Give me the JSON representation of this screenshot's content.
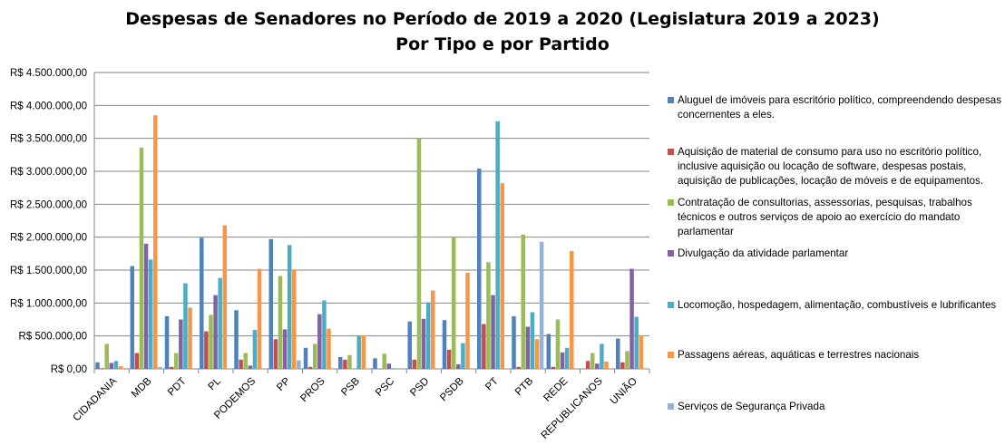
{
  "chart_data": {
    "type": "bar",
    "title": "Despesas de Senadores no Período de 2019 a 2020 (Legislatura 2019 a 2023)",
    "subtitle": "Por Tipo e por Partido",
    "ylim": [
      0,
      4500000
    ],
    "yticks": [
      0,
      500000,
      1000000,
      1500000,
      2000000,
      2500000,
      3000000,
      3500000,
      4000000,
      4500000
    ],
    "ytick_labels": [
      "R$ 0,00",
      "R$ 500.000,00",
      "R$ 1.000.000,00",
      "R$ 1.500.000,00",
      "R$ 2.000.000,00",
      "R$ 2.500.000,00",
      "R$ 3.000.000,00",
      "R$ 3.500.000,00",
      "R$ 4.000.000,00",
      "R$ 4.500.000,00"
    ],
    "grid": true,
    "legend_position": "right",
    "categories": [
      "CIDADANIA",
      "MDB",
      "PDT",
      "PL",
      "PODEMOS",
      "PP",
      "PROS",
      "PSB",
      "PSC",
      "PSD",
      "PSDB",
      "PT",
      "PTB",
      "REDE",
      "REPUBLICANOS",
      "UNIÃO"
    ],
    "series": [
      {
        "name": "Aluguel de imóveis para escritório político, compreendendo despesas concernentes a eles.",
        "color": "#4F81BD",
        "values": [
          100000,
          1560000,
          800000,
          1990000,
          890000,
          1970000,
          320000,
          180000,
          160000,
          720000,
          740000,
          3040000,
          800000,
          530000,
          0,
          460000
        ]
      },
      {
        "name": "Aquisição de material de consumo para uso no escritório político, inclusive aquisição ou locação de software, despesas postais, aquisição de publicações, locação de móveis e de equipamentos.",
        "color": "#C0504D",
        "values": [
          10000,
          240000,
          30000,
          570000,
          140000,
          450000,
          30000,
          140000,
          0,
          140000,
          290000,
          680000,
          30000,
          30000,
          120000,
          100000
        ]
      },
      {
        "name": "Contratação de consultorias, assessorias, pesquisas, trabalhos técnicos e outros serviços de apoio ao exercício do mandato parlamentar",
        "color": "#9BBB59",
        "values": [
          380000,
          3360000,
          240000,
          820000,
          240000,
          1410000,
          380000,
          210000,
          230000,
          3500000,
          2000000,
          1620000,
          2040000,
          750000,
          240000,
          270000
        ]
      },
      {
        "name": "Divulgação da atividade parlamentar",
        "color": "#8064A2",
        "values": [
          90000,
          1900000,
          750000,
          1120000,
          50000,
          600000,
          830000,
          0,
          80000,
          760000,
          70000,
          1120000,
          640000,
          250000,
          80000,
          1520000
        ]
      },
      {
        "name": "Locomoção, hospedagem, alimentação, combustíveis e lubrificantes",
        "color": "#4BACC6",
        "values": [
          120000,
          1660000,
          1300000,
          1380000,
          590000,
          1880000,
          1040000,
          500000,
          10000,
          1010000,
          390000,
          3760000,
          860000,
          320000,
          380000,
          790000
        ]
      },
      {
        "name": "Passagens aéreas, aquáticas e terrestres nacionais",
        "color": "#F79646",
        "values": [
          40000,
          3850000,
          930000,
          2180000,
          1520000,
          1510000,
          610000,
          510000,
          0,
          1190000,
          1460000,
          2820000,
          450000,
          1790000,
          110000,
          510000
        ]
      },
      {
        "name": "Serviços de Segurança Privada",
        "color": "#95B3D7",
        "values": [
          0,
          30000,
          0,
          0,
          0,
          130000,
          0,
          0,
          0,
          0,
          0,
          0,
          1930000,
          0,
          0,
          0
        ]
      }
    ]
  }
}
